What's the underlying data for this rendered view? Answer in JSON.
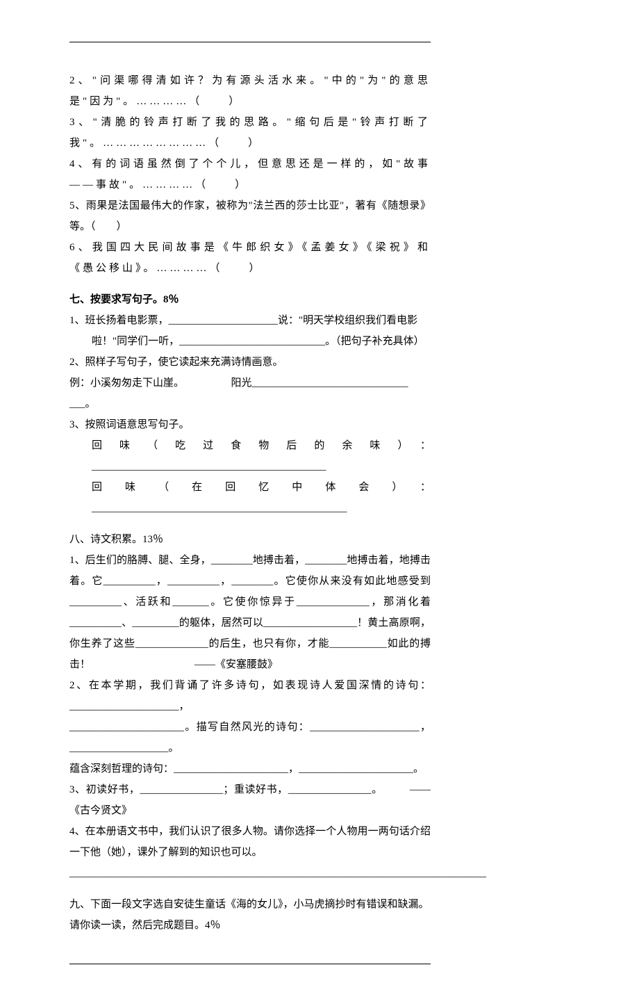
{
  "typography": {
    "font_family": "SimSun",
    "font_size_pt": 11,
    "line_height": 2.0,
    "text_color": "#000000",
    "background_color": "#ffffff",
    "rule_color": "#000000"
  },
  "q2": "2、\"问渠哪得清如许？为有源头活水来。\"中的\"为\"的意思是\"因为\"。…………（　　）",
  "q3": "3、\"清脆的铃声打断了我的思路。\"缩句后是\"铃声打断了我\"。……………………（　　）",
  "q4": "4、有的词语虽然倒了个个儿，但意思还是一样的，如\"故事——事故\"。…………（　　）",
  "q5": "5、雨果是法国最伟大的作家，被称为\"法兰西的莎士比亚\"，著有《随想录》等。（　　）",
  "q6": "6、我国四大民间故事是《牛郎织女》《孟姜女》《梁祝》和《愚公移山》。…………（　　）",
  "sec7_title": "七、按要求写句子。8％",
  "sec7_1a": "1、班长扬着电影票，_____________________说：\"明天学校组织我们看电影",
  "sec7_1b": "啦！\"同学们一听，____________________________。（把句子补充具体）",
  "sec7_2": "2、照样子写句子，使它读起来充满诗情画意。",
  "sec7_2ex_a": "例：小溪匆匆走下山崖。　　　　　阳光______________________________",
  "sec7_2ex_b": "___。",
  "sec7_3": "3、按照词语意思写句子。",
  "sec7_3a": "回味（吃过食物后的余味）：_____________________________________________",
  "sec7_3b": "回味（在回忆中体会）：_________________________________________________",
  "sec8_title": "八、诗文积累。13％",
  "sec8_1a": "1、后生们的胳膊、腿、全身，________地搏击着，________地搏击着，地搏击着。它__________，__________，________。它使你从来没有如此地感受到__________、活跃和_______。它使你惊异于______________，那消化着__________、_________的躯体，居然可以__________________！黄土高原啊，你生养了这些______________的后生，也只有你，才能___________如此的搏击！　　　　　　　　　　——《安塞腰鼓》",
  "sec8_2a": "2、在本学期，我们背诵了许多诗句，如表现诗人爱国深情的诗句：_____________________，",
  "sec8_2b": "______________________。描写自然风光的诗句：_____________________，___________________。",
  "sec8_2c": "蕴含深刻哲理的诗句：______________________，______________________。",
  "sec8_3": "3、初读好书，________________；重读好书，________________。　　　——《古今贤文》",
  "sec8_4a": "4、在本册语文书中，我们认识了很多人物。请你选择一个人物用一两句话介绍一下他（她），课外了解到的知识也可以。",
  "sec8_4b": "________________________________________________________________________________",
  "sec9_title": "九、下面一段文字选自安徒生童话《海的女儿》，小马虎摘抄时有错误和缺漏。请你读一读，然后完成题目。4％"
}
